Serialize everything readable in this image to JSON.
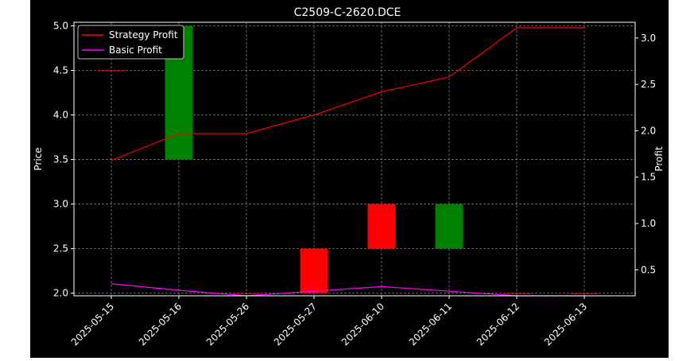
{
  "chart_data": {
    "type": "candlestick+line",
    "title": "C2509-C-2620.DCE",
    "xlabel": "",
    "ylabel_left": "Price",
    "ylabel_right": "Profit",
    "categories": [
      "2025-05-15",
      "2025-05-16",
      "2025-05-26",
      "2025-05-27",
      "2025-06-10",
      "2025-06-11",
      "2025-06-12",
      "2025-06-13"
    ],
    "ylim_left": [
      1.97,
      5.04
    ],
    "ylim_right": [
      0.22,
      3.17
    ],
    "yticks_left": [
      "2.0",
      "2.5",
      "3.0",
      "3.5",
      "4.0",
      "4.5",
      "5.0"
    ],
    "yticks_right": [
      "0.5",
      "1.0",
      "1.5",
      "2.0",
      "2.5",
      "3.0"
    ],
    "candles": [
      {
        "open": 4.5,
        "close": 4.5,
        "color": "#ff0000"
      },
      {
        "open": 3.5,
        "close": 5.0,
        "color": "#008000"
      },
      {
        "open": 2.0,
        "close": 2.0,
        "color": "#ff0000"
      },
      {
        "open": 2.5,
        "close": 2.0,
        "color": "#ff0000"
      },
      {
        "open": 3.0,
        "close": 2.5,
        "color": "#ff0000"
      },
      {
        "open": 2.5,
        "close": 3.0,
        "color": "#008000"
      },
      {
        "open": 2.0,
        "close": 2.0,
        "color": "#ff0000"
      },
      {
        "open": 2.0,
        "close": 2.0,
        "color": "#ff0000"
      }
    ],
    "series": [
      {
        "name": "Strategy Profit",
        "color": "#ff0000",
        "values": [
          1.68,
          1.97,
          1.97,
          2.17,
          2.42,
          2.58,
          3.11,
          3.11
        ]
      },
      {
        "name": "Basic Profit",
        "color": "#ff00ff",
        "values": [
          0.35,
          0.28,
          0.22,
          0.27,
          0.32,
          0.27,
          0.22,
          0.22
        ]
      }
    ],
    "grid": true,
    "legend_position": "top-left"
  }
}
